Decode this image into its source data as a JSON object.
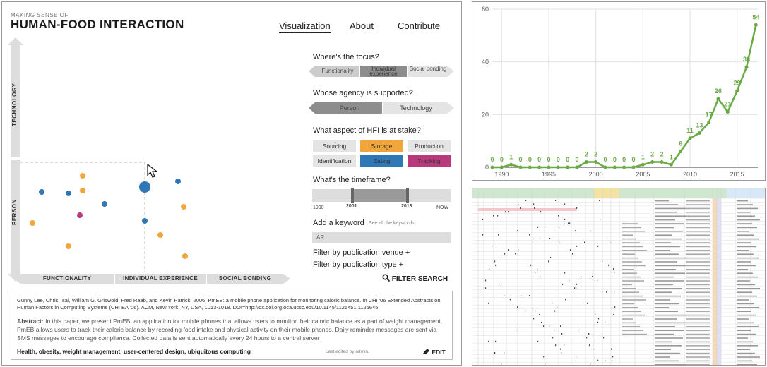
{
  "app": {
    "brand_small": "MAKING SENSE OF",
    "brand_title": "HUMAN-FOOD INTERACTION",
    "nav": {
      "visualization": "Visualization",
      "about": "About",
      "contribute": "Contribute"
    },
    "axes": {
      "y_top": "TECHNOLOGY",
      "y_bottom": "PERSON",
      "x": [
        "FUNCTIONALITY",
        "INDIVIDUAL EXPERIENCE",
        "SOCIAL BONDING"
      ]
    },
    "colors": {
      "blue": "#2f77b5",
      "orange": "#f0a63a",
      "magenta": "#b83a7c"
    }
  },
  "filters": {
    "focus": {
      "question": "Where's the focus?",
      "options": [
        "Functionality",
        "Individual experience",
        "Social bonding"
      ]
    },
    "agency": {
      "question": "Whose agency is supported?",
      "options": [
        "Person",
        "Technology"
      ]
    },
    "aspect": {
      "question": "What aspect of HFI is at stake?",
      "chips": [
        "Sourcing",
        "Storage",
        "Production",
        "Identification",
        "Eating",
        "Tracking"
      ]
    },
    "timeframe": {
      "question": "What's the timeframe?",
      "min": "1990",
      "start": "2001",
      "end": "2013",
      "max": "NOW"
    },
    "keyword": {
      "label": "Add a keyword",
      "see_all": "See all the keywords",
      "value": "AR"
    },
    "venue": "Filter by publication venue +",
    "type": "Filter by publication type +",
    "search": "FILTER SEARCH"
  },
  "paper": {
    "citation": "Gunny Lee, Chris Tsai, William G. Griswold, Fred Raab, and Kevin Patrick. 2006. PmEB: a mobile phone application for monitoring caloric balance. In CHI '06 Extended Abstracts on Human Factors in Computing Systems (CHI EA '06). ACM, New York, NY, USA, 1013-1018. DOI=http://dx.doi.org.oca.ucsc.edu/10.1145/1125451.1125645",
    "abstract_label": "Abstract:",
    "abstract": " In this paper, we present PmEB, an application for mobile phones that allows users to monitor their caloric balance as a part of weight management. PmEB allows users to track their caloric balance by recording food intake and physical activity on their mobile phones. Daily reminder messages are sent via SMS messages to encourage compliance. Collected data is sent automatically every 24 hours to a central server",
    "keywords": "Health, obesity, weight management, user-centered design, ubiquitous computing",
    "edited": "Last edited by admin.",
    "edit": "EDIT"
  },
  "chart_data": {
    "type": "line",
    "x": [
      1989,
      1990,
      1991,
      1992,
      1993,
      1994,
      1995,
      1996,
      1997,
      1998,
      1999,
      2000,
      2001,
      2002,
      2003,
      2004,
      2005,
      2006,
      2007,
      2008,
      2009,
      2010,
      2011,
      2012,
      2013,
      2014,
      2015,
      2016,
      2017
    ],
    "values": [
      0,
      0,
      1,
      0,
      0,
      0,
      0,
      0,
      0,
      0,
      2,
      2,
      0,
      0,
      0,
      0,
      1,
      2,
      2,
      1,
      6,
      11,
      13,
      17,
      26,
      21,
      29,
      38,
      54
    ],
    "xticks": [
      1990,
      1995,
      2000,
      2005,
      2010,
      2015
    ],
    "yticks": [
      0,
      20,
      40,
      60
    ],
    "ylim": [
      0,
      60
    ],
    "color": "#6aaa45",
    "grid": true
  }
}
